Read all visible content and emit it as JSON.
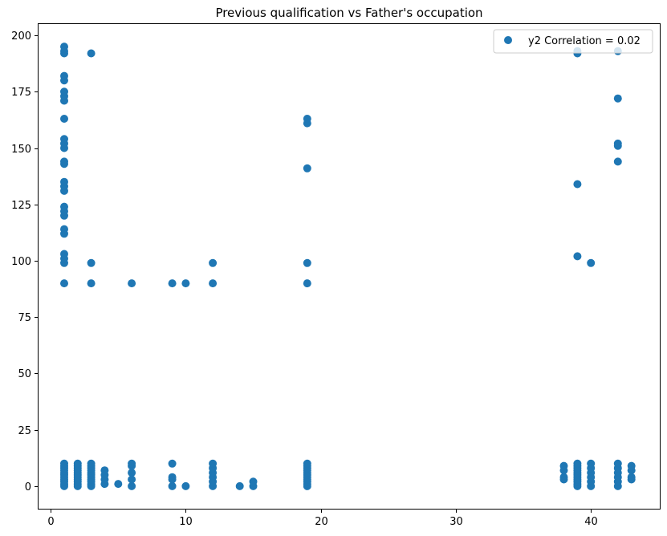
{
  "chart_data": {
    "type": "scatter",
    "title": "Previous qualification vs Father's occupation",
    "xlabel": "",
    "ylabel": "",
    "xlim": [
      -0.9,
      45.1
    ],
    "ylim": [
      -10,
      205
    ],
    "x_ticks": [
      0,
      10,
      20,
      30,
      40
    ],
    "y_ticks": [
      0,
      25,
      50,
      75,
      100,
      125,
      150,
      175,
      200
    ],
    "grid": false,
    "legend_position": "top-right",
    "marker_color": "#1f77b4",
    "series": [
      {
        "name": "y2 Correlation = 0.02",
        "points": [
          [
            1,
            0
          ],
          [
            1,
            1
          ],
          [
            1,
            2
          ],
          [
            1,
            3
          ],
          [
            1,
            4
          ],
          [
            1,
            5
          ],
          [
            1,
            6
          ],
          [
            1,
            7
          ],
          [
            1,
            8
          ],
          [
            1,
            9
          ],
          [
            1,
            10
          ],
          [
            1,
            90
          ],
          [
            1,
            99
          ],
          [
            1,
            101
          ],
          [
            1,
            103
          ],
          [
            1,
            112
          ],
          [
            1,
            114
          ],
          [
            1,
            120
          ],
          [
            1,
            122
          ],
          [
            1,
            124
          ],
          [
            1,
            131
          ],
          [
            1,
            133
          ],
          [
            1,
            135
          ],
          [
            1,
            143
          ],
          [
            1,
            144
          ],
          [
            1,
            150
          ],
          [
            1,
            152
          ],
          [
            1,
            154
          ],
          [
            1,
            163
          ],
          [
            1,
            171
          ],
          [
            1,
            173
          ],
          [
            1,
            175
          ],
          [
            1,
            180
          ],
          [
            1,
            182
          ],
          [
            1,
            192
          ],
          [
            1,
            193
          ],
          [
            1,
            195
          ],
          [
            2,
            0
          ],
          [
            2,
            1
          ],
          [
            2,
            2
          ],
          [
            2,
            3
          ],
          [
            2,
            4
          ],
          [
            2,
            5
          ],
          [
            2,
            6
          ],
          [
            2,
            7
          ],
          [
            2,
            8
          ],
          [
            2,
            9
          ],
          [
            2,
            10
          ],
          [
            3,
            0
          ],
          [
            3,
            1
          ],
          [
            3,
            2
          ],
          [
            3,
            3
          ],
          [
            3,
            4
          ],
          [
            3,
            5
          ],
          [
            3,
            6
          ],
          [
            3,
            7
          ],
          [
            3,
            8
          ],
          [
            3,
            9
          ],
          [
            3,
            10
          ],
          [
            3,
            90
          ],
          [
            3,
            99
          ],
          [
            3,
            192
          ],
          [
            4,
            1
          ],
          [
            4,
            3
          ],
          [
            4,
            5
          ],
          [
            4,
            7
          ],
          [
            5,
            1
          ],
          [
            6,
            0
          ],
          [
            6,
            3
          ],
          [
            6,
            6
          ],
          [
            6,
            9
          ],
          [
            6,
            10
          ],
          [
            6,
            90
          ],
          [
            9,
            0
          ],
          [
            9,
            3
          ],
          [
            9,
            4
          ],
          [
            9,
            10
          ],
          [
            9,
            90
          ],
          [
            10,
            0
          ],
          [
            10,
            90
          ],
          [
            12,
            0
          ],
          [
            12,
            2
          ],
          [
            12,
            4
          ],
          [
            12,
            6
          ],
          [
            12,
            8
          ],
          [
            12,
            10
          ],
          [
            12,
            90
          ],
          [
            12,
            99
          ],
          [
            14,
            0
          ],
          [
            15,
            0
          ],
          [
            15,
            2
          ],
          [
            19,
            0
          ],
          [
            19,
            1
          ],
          [
            19,
            2
          ],
          [
            19,
            3
          ],
          [
            19,
            4
          ],
          [
            19,
            5
          ],
          [
            19,
            6
          ],
          [
            19,
            7
          ],
          [
            19,
            8
          ],
          [
            19,
            9
          ],
          [
            19,
            10
          ],
          [
            19,
            90
          ],
          [
            19,
            99
          ],
          [
            19,
            141
          ],
          [
            19,
            161
          ],
          [
            19,
            163
          ],
          [
            38,
            3
          ],
          [
            38,
            4
          ],
          [
            38,
            7
          ],
          [
            38,
            9
          ],
          [
            39,
            0
          ],
          [
            39,
            1
          ],
          [
            39,
            2
          ],
          [
            39,
            3
          ],
          [
            39,
            4
          ],
          [
            39,
            5
          ],
          [
            39,
            6
          ],
          [
            39,
            7
          ],
          [
            39,
            8
          ],
          [
            39,
            9
          ],
          [
            39,
            10
          ],
          [
            39,
            102
          ],
          [
            39,
            134
          ],
          [
            39,
            192
          ],
          [
            39,
            193
          ],
          [
            40,
            0
          ],
          [
            40,
            2
          ],
          [
            40,
            4
          ],
          [
            40,
            6
          ],
          [
            40,
            8
          ],
          [
            40,
            10
          ],
          [
            40,
            99
          ],
          [
            42,
            0
          ],
          [
            42,
            2
          ],
          [
            42,
            4
          ],
          [
            42,
            6
          ],
          [
            42,
            8
          ],
          [
            42,
            10
          ],
          [
            42,
            144
          ],
          [
            42,
            151
          ],
          [
            42,
            152
          ],
          [
            42,
            172
          ],
          [
            42,
            193
          ],
          [
            43,
            3
          ],
          [
            43,
            4
          ],
          [
            43,
            7
          ],
          [
            43,
            9
          ]
        ]
      }
    ]
  }
}
